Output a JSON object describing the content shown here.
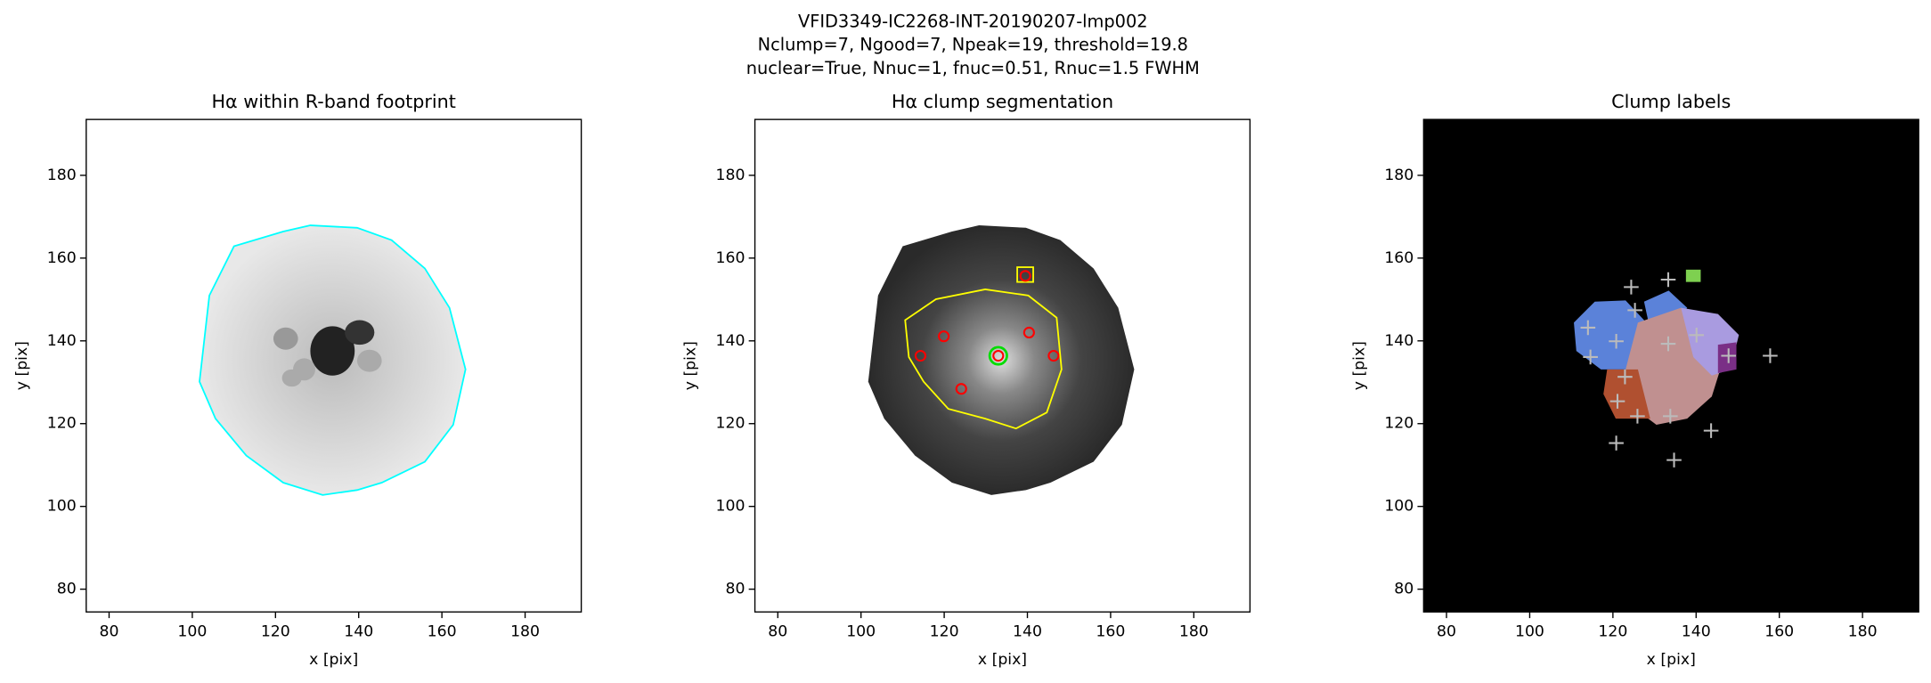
{
  "suptitle": [
    "VFID3349-IC2268-INT-20190207-lmp002",
    "Nclump=7, Ngood=7, Npeak=19, threshold=19.8",
    "nuclear=True, Nnuc=1, fnuc=0.51, Rnuc=1.5 FWHM"
  ],
  "chart_data": [
    {
      "type": "image",
      "title": "Hα within R-band footprint",
      "xlabel": "x [pix]",
      "ylabel": "y [pix]",
      "xlim": [
        74.5,
        193.5
      ],
      "ylim": [
        74.5,
        193.5
      ],
      "xticks": [
        80,
        100,
        120,
        140,
        160,
        180
      ],
      "yticks": [
        80,
        100,
        120,
        140,
        160,
        180
      ],
      "background": "#ffffff",
      "series": []
    },
    {
      "type": "image",
      "title": "Hα clump segmentation",
      "xlabel": "x [pix]",
      "ylabel": "y [pix]",
      "xlim": [
        74.5,
        193.5
      ],
      "ylim": [
        74.5,
        193.5
      ],
      "xticks": [
        80,
        100,
        120,
        140,
        160,
        180
      ],
      "yticks": [
        80,
        100,
        120,
        140,
        160,
        180
      ],
      "background": "#ffffff",
      "series": [
        {
          "marker": "circle",
          "color": "#ff0000",
          "x": [
            114.3,
            119.9,
            124.1,
            133.0,
            140.4,
            146.3,
            139.5
          ],
          "values": [
            136.4,
            141.1,
            128.4,
            136.4,
            142.0,
            136.4,
            155.7
          ]
        },
        {
          "marker": "ring",
          "color": "#00dd00",
          "x": [
            133.0
          ],
          "values": [
            136.4
          ]
        }
      ]
    },
    {
      "type": "image",
      "title": "Clump labels",
      "xlabel": "x [pix]",
      "ylabel": "y [pix]",
      "xlim": [
        74.5,
        193.5
      ],
      "ylim": [
        74.5,
        193.5
      ],
      "xticks": [
        80,
        100,
        120,
        140,
        160,
        180
      ],
      "yticks": [
        80,
        100,
        120,
        140,
        160,
        180
      ],
      "background": "#000000",
      "series": [
        {
          "marker": "cross",
          "color": "#bbbbbb",
          "x": [
            124.4,
            133.3,
            114.0,
            120.8,
            125.3,
            133.3,
            140.1,
            114.6,
            147.8,
            157.8,
            122.9,
            121.1,
            125.9,
            133.8,
            143.6,
            120.8,
            134.7
          ],
          "values": [
            153.0,
            154.8,
            143.2,
            139.9,
            147.4,
            139.3,
            141.4,
            136.1,
            136.4,
            136.4,
            131.3,
            125.4,
            121.8,
            121.8,
            118.3,
            115.3,
            111.2
          ]
        }
      ]
    }
  ]
}
